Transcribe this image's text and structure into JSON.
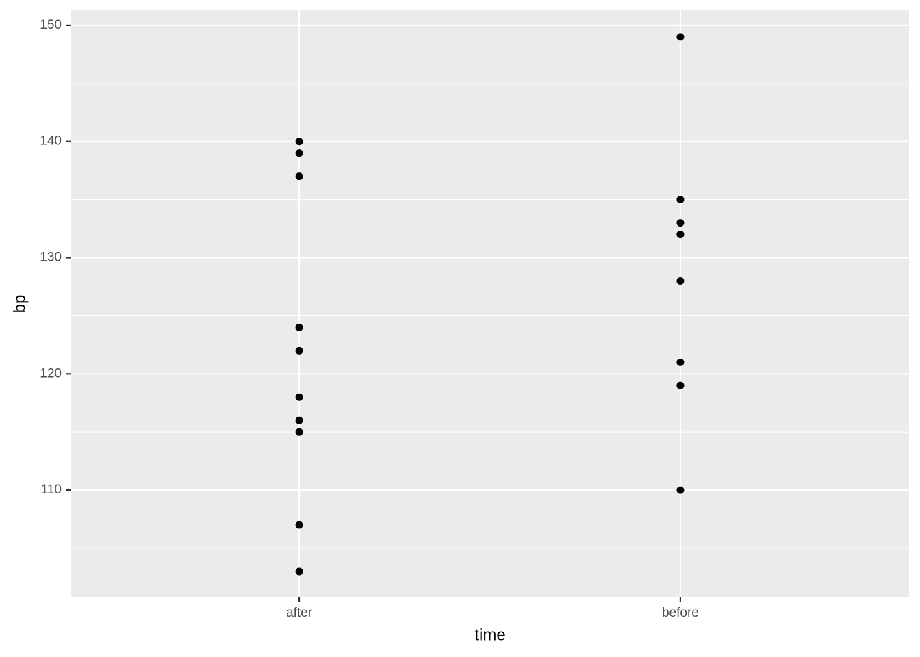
{
  "chart_data": {
    "type": "scatter",
    "x_label": "time",
    "y_label": "bp",
    "categories": [
      "after",
      "before"
    ],
    "x": [
      "after",
      "after",
      "after",
      "after",
      "after",
      "after",
      "after",
      "after",
      "after",
      "after",
      "before",
      "before",
      "before",
      "before",
      "before",
      "before",
      "before",
      "before",
      "before",
      "before"
    ],
    "y": [
      140,
      139,
      137,
      124,
      122,
      118,
      116,
      115,
      107,
      103,
      149,
      135,
      133,
      132,
      132,
      128,
      121,
      119,
      119,
      110
    ],
    "color": "#000000",
    "ylim": [
      100.76,
      151.29
    ],
    "yticks": [
      110,
      120,
      130,
      140,
      150
    ],
    "y_minor_grid": [
      105,
      115,
      125,
      135,
      145
    ],
    "grid": true
  }
}
